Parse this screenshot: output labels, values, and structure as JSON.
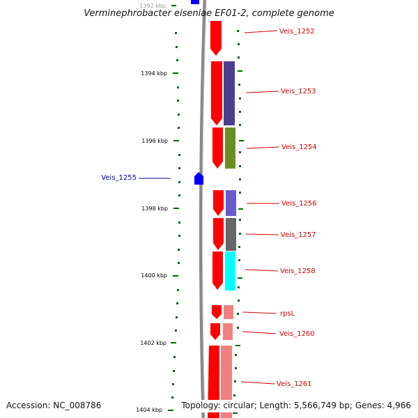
{
  "title": "Verminephrobacter eiseniae EF01-2, complete genome",
  "footer": {
    "accession": "Accession: NC_008786",
    "topology": "Topology: circular; Length: 5,566,749 bp; Genes: 4,966"
  },
  "colors": {
    "forward_label": "#cc0000",
    "reverse_label": "#00009a",
    "backbone": "#888888",
    "tick": "#006600"
  },
  "axis": {
    "labels": [
      "1392 kbp",
      "1394 kbp",
      "1396 kbp",
      "1398 kbp",
      "1400 kbp",
      "1402 kbp",
      "1404 kbp"
    ]
  },
  "genes": [
    {
      "label": "Veis_1252",
      "color": "#ff0000"
    },
    {
      "label": "Veis_1253",
      "color": "#ff0000",
      "cog_color": "#4a3f8f"
    },
    {
      "label": "Veis_1254",
      "color": "#ff0000",
      "cog_color": "#6b8e23"
    },
    {
      "label": "Veis_1255",
      "color": "#0000ff"
    },
    {
      "label": "Veis_1256",
      "color": "#ff0000",
      "cog_color": "#6a5acd"
    },
    {
      "label": "Veis_1257",
      "color": "#ff0000",
      "cog_color": "#666666"
    },
    {
      "label": "Veis_1258",
      "color": "#ff0000",
      "cog_color": "#00ffff"
    },
    {
      "label": "rpsL",
      "color": "#ff0000",
      "cog_color": "#f08080"
    },
    {
      "label": "Veis_1260",
      "color": "#ff0000",
      "cog_color": "#f08080"
    },
    {
      "label": "Veis_1261",
      "color": "#ff0000",
      "cog_color": "#f08080"
    }
  ]
}
